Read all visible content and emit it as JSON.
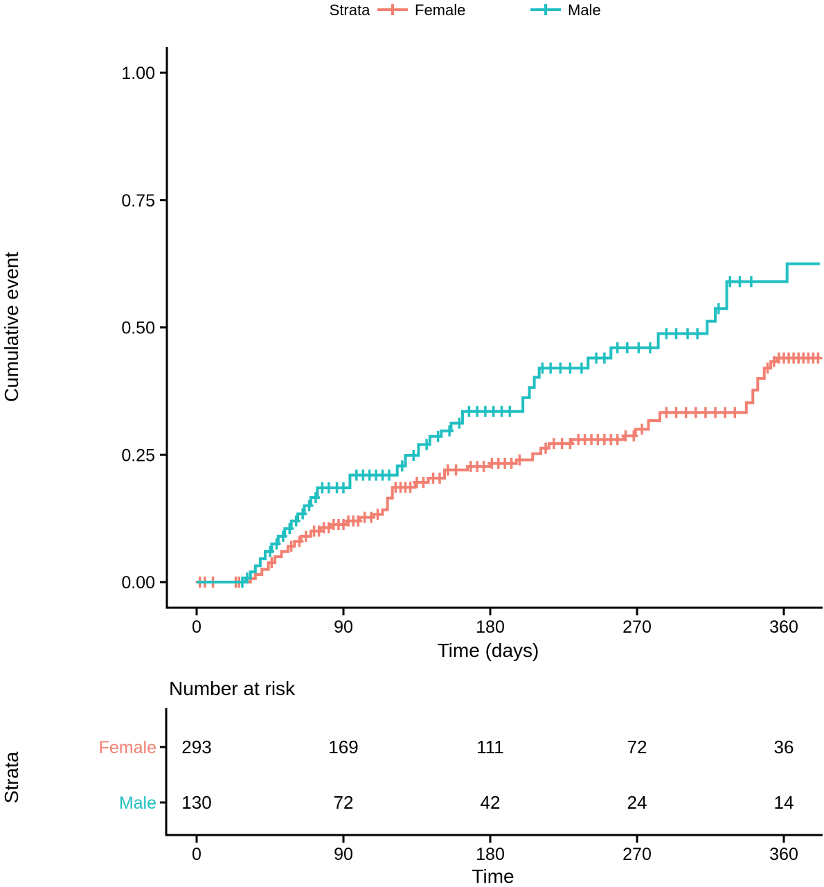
{
  "figure": {
    "background": "#ffffff",
    "axis_color": "#000000",
    "text_color": "#000000"
  },
  "chart_data": {
    "type": "line",
    "subtype": "kaplan-meier-cumulative-event-step",
    "title": "",
    "legend_title": "Strata",
    "legend_position": "top",
    "xlabel": "Time (days)",
    "ylabel": "Cumulative event",
    "xlim": [
      0,
      382
    ],
    "ylim": [
      0,
      1
    ],
    "grid": false,
    "xticks": [
      {
        "label": "0",
        "value": 0
      },
      {
        "label": "90",
        "value": 90
      },
      {
        "label": "180",
        "value": 180
      },
      {
        "label": "270",
        "value": 270
      },
      {
        "label": "360",
        "value": 360
      }
    ],
    "yticks": [
      {
        "label": "0.00",
        "value": 0
      },
      {
        "label": "0.25",
        "value": 0.25
      },
      {
        "label": "0.50",
        "value": 0.5
      },
      {
        "label": "0.75",
        "value": 0.75
      },
      {
        "label": "1.00",
        "value": 1
      }
    ],
    "series": [
      {
        "name": "Female",
        "color": "#F28072",
        "steps": [
          [
            0,
            0
          ],
          [
            33,
            0.007
          ],
          [
            36,
            0.015
          ],
          [
            40,
            0.025
          ],
          [
            44,
            0.038
          ],
          [
            48,
            0.05
          ],
          [
            52,
            0.06
          ],
          [
            56,
            0.07
          ],
          [
            60,
            0.08
          ],
          [
            64,
            0.09
          ],
          [
            70,
            0.1
          ],
          [
            76,
            0.107
          ],
          [
            82,
            0.113
          ],
          [
            92,
            0.12
          ],
          [
            100,
            0.127
          ],
          [
            108,
            0.133
          ],
          [
            114,
            0.142
          ],
          [
            117,
            0.165
          ],
          [
            120,
            0.186
          ],
          [
            134,
            0.196
          ],
          [
            142,
            0.204
          ],
          [
            152,
            0.22
          ],
          [
            166,
            0.227
          ],
          [
            180,
            0.233
          ],
          [
            196,
            0.24
          ],
          [
            206,
            0.252
          ],
          [
            211,
            0.263
          ],
          [
            216,
            0.272
          ],
          [
            230,
            0.28
          ],
          [
            262,
            0.287
          ],
          [
            269,
            0.3
          ],
          [
            277,
            0.317
          ],
          [
            284,
            0.333
          ],
          [
            337,
            0.352
          ],
          [
            341,
            0.377
          ],
          [
            344,
            0.4
          ],
          [
            348,
            0.42
          ],
          [
            352,
            0.433
          ],
          [
            356,
            0.44
          ]
        ],
        "censor_days": [
          2,
          5,
          10,
          24,
          26,
          46,
          58,
          63,
          67,
          72,
          75,
          78,
          81,
          84,
          87,
          90,
          93,
          96,
          99,
          103,
          107,
          111,
          122,
          125,
          128,
          131,
          135,
          139,
          145,
          149,
          154,
          159,
          168,
          172,
          176,
          181,
          185,
          189,
          193,
          198,
          214,
          219,
          224,
          229,
          234,
          238,
          242,
          246,
          250,
          254,
          258,
          263,
          268,
          273,
          288,
          294,
          300,
          306,
          312,
          318,
          324,
          330,
          350,
          354,
          357,
          360,
          363,
          366,
          369,
          372,
          375,
          378,
          381
        ]
      },
      {
        "name": "Male",
        "color": "#22BFC1",
        "steps": [
          [
            0,
            0
          ],
          [
            30,
            0.008
          ],
          [
            33,
            0.02
          ],
          [
            36,
            0.032
          ],
          [
            39,
            0.046
          ],
          [
            42,
            0.06
          ],
          [
            46,
            0.075
          ],
          [
            50,
            0.09
          ],
          [
            54,
            0.105
          ],
          [
            58,
            0.12
          ],
          [
            62,
            0.134
          ],
          [
            66,
            0.15
          ],
          [
            70,
            0.166
          ],
          [
            74,
            0.185
          ],
          [
            94,
            0.21
          ],
          [
            123,
            0.228
          ],
          [
            128,
            0.249
          ],
          [
            136,
            0.27
          ],
          [
            143,
            0.286
          ],
          [
            150,
            0.297
          ],
          [
            156,
            0.312
          ],
          [
            163,
            0.335
          ],
          [
            200,
            0.362
          ],
          [
            204,
            0.382
          ],
          [
            207,
            0.402
          ],
          [
            210,
            0.42
          ],
          [
            240,
            0.44
          ],
          [
            254,
            0.46
          ],
          [
            283,
            0.488
          ],
          [
            313,
            0.512
          ],
          [
            318,
            0.537
          ],
          [
            325,
            0.59
          ],
          [
            362,
            0.625
          ]
        ],
        "censor_days": [
          28,
          31,
          45,
          49,
          53,
          57,
          61,
          65,
          69,
          73,
          77,
          81,
          86,
          90,
          98,
          102,
          106,
          110,
          114,
          118,
          126,
          133,
          141,
          148,
          155,
          161,
          167,
          172,
          177,
          182,
          187,
          192,
          212,
          217,
          223,
          229,
          236,
          245,
          250,
          258,
          264,
          271,
          278,
          288,
          294,
          301,
          307,
          320,
          327,
          333,
          340
        ]
      }
    ]
  },
  "risk_table": {
    "title": "Number at risk",
    "ylabel": "Strata",
    "xlabel": "Time",
    "xticks": [
      {
        "label": "0",
        "value": 0
      },
      {
        "label": "90",
        "value": 90
      },
      {
        "label": "180",
        "value": 180
      },
      {
        "label": "270",
        "value": 270
      },
      {
        "label": "360",
        "value": 360
      }
    ],
    "rows": [
      {
        "label": "Female",
        "color": "#F28072",
        "values": [
          293,
          169,
          111,
          72,
          36
        ]
      },
      {
        "label": "Male",
        "color": "#22BFC1",
        "values": [
          130,
          72,
          42,
          24,
          14
        ]
      }
    ]
  }
}
